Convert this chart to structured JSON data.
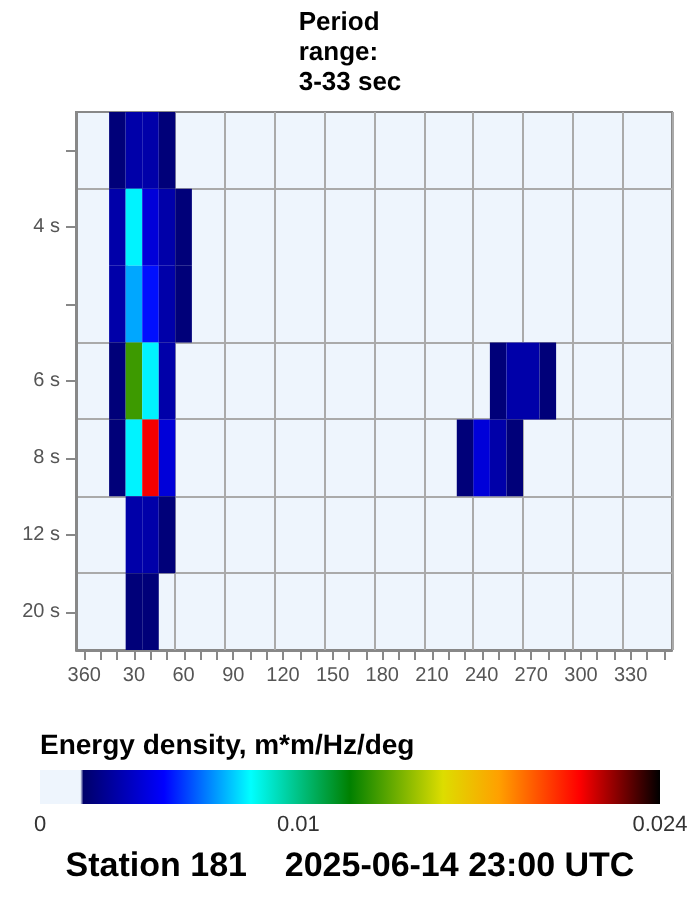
{
  "chart_data": {
    "type": "heatmap",
    "title": "Station 181    2025-06-14 23:00 UTC",
    "clabel": "Energy density, m*m/Hz/deg",
    "annotations": [
      "Period\nrange:\n3-33 sec"
    ],
    "categories": [
      "360",
      null,
      null,
      "30",
      null,
      null,
      "60",
      null,
      null,
      "90",
      null,
      null,
      "120",
      null,
      null,
      "150",
      null,
      null,
      "180",
      null,
      null,
      "210",
      null,
      null,
      "240",
      null,
      null,
      "270",
      null,
      null,
      "300",
      null,
      null,
      "330",
      null,
      null
    ],
    "y_categories": [
      null,
      "4 s",
      null,
      "6 s",
      "8 s",
      "12 s",
      "20 s"
    ],
    "cells": [
      [
        null,
        null,
        0.002,
        0.003,
        0.003,
        0.002,
        null,
        null,
        null,
        null,
        null,
        null,
        null,
        null,
        null,
        null,
        null,
        null,
        null,
        null,
        null,
        null,
        null,
        null,
        null,
        null,
        null,
        null,
        null,
        null,
        null,
        null,
        null,
        null,
        null,
        null
      ],
      [
        null,
        null,
        0.003,
        0.008,
        0.004,
        0.003,
        0.002,
        null,
        null,
        null,
        null,
        null,
        null,
        null,
        null,
        null,
        null,
        null,
        null,
        null,
        null,
        null,
        null,
        null,
        null,
        null,
        null,
        null,
        null,
        null,
        null,
        null,
        null,
        null,
        null,
        null
      ],
      [
        null,
        null,
        0.003,
        0.007,
        0.005,
        0.003,
        0.002,
        null,
        null,
        null,
        null,
        null,
        null,
        null,
        null,
        null,
        null,
        null,
        null,
        null,
        null,
        null,
        null,
        null,
        null,
        null,
        null,
        null,
        null,
        null,
        null,
        null,
        null,
        null,
        null,
        null
      ],
      [
        null,
        null,
        0.002,
        0.013,
        0.008,
        0.003,
        null,
        null,
        null,
        null,
        null,
        null,
        null,
        null,
        null,
        null,
        null,
        null,
        null,
        null,
        null,
        null,
        null,
        null,
        null,
        0.002,
        0.003,
        0.003,
        0.002,
        null,
        null,
        null,
        null,
        null,
        null,
        null
      ],
      [
        null,
        null,
        0.002,
        0.008,
        0.021,
        0.004,
        null,
        null,
        null,
        null,
        null,
        null,
        null,
        null,
        null,
        null,
        null,
        null,
        null,
        null,
        null,
        null,
        null,
        0.002,
        0.004,
        0.003,
        0.002,
        null,
        null,
        null,
        null,
        null,
        null,
        null,
        null,
        null
      ],
      [
        null,
        null,
        null,
        0.003,
        0.003,
        0.002,
        null,
        null,
        null,
        null,
        null,
        null,
        null,
        null,
        null,
        null,
        null,
        null,
        null,
        null,
        null,
        null,
        null,
        null,
        null,
        null,
        null,
        null,
        null,
        null,
        null,
        null,
        null,
        null,
        null,
        null
      ],
      [
        null,
        null,
        null,
        0.002,
        0.002,
        null,
        null,
        null,
        null,
        null,
        null,
        null,
        null,
        null,
        null,
        null,
        null,
        null,
        null,
        null,
        null,
        null,
        null,
        null,
        null,
        null,
        null,
        null,
        null,
        null,
        null,
        null,
        null,
        null,
        null,
        null
      ]
    ],
    "clim": [
      0,
      0.024
    ],
    "cticks": [
      0,
      0.01,
      0.024
    ],
    "grid": true
  }
}
